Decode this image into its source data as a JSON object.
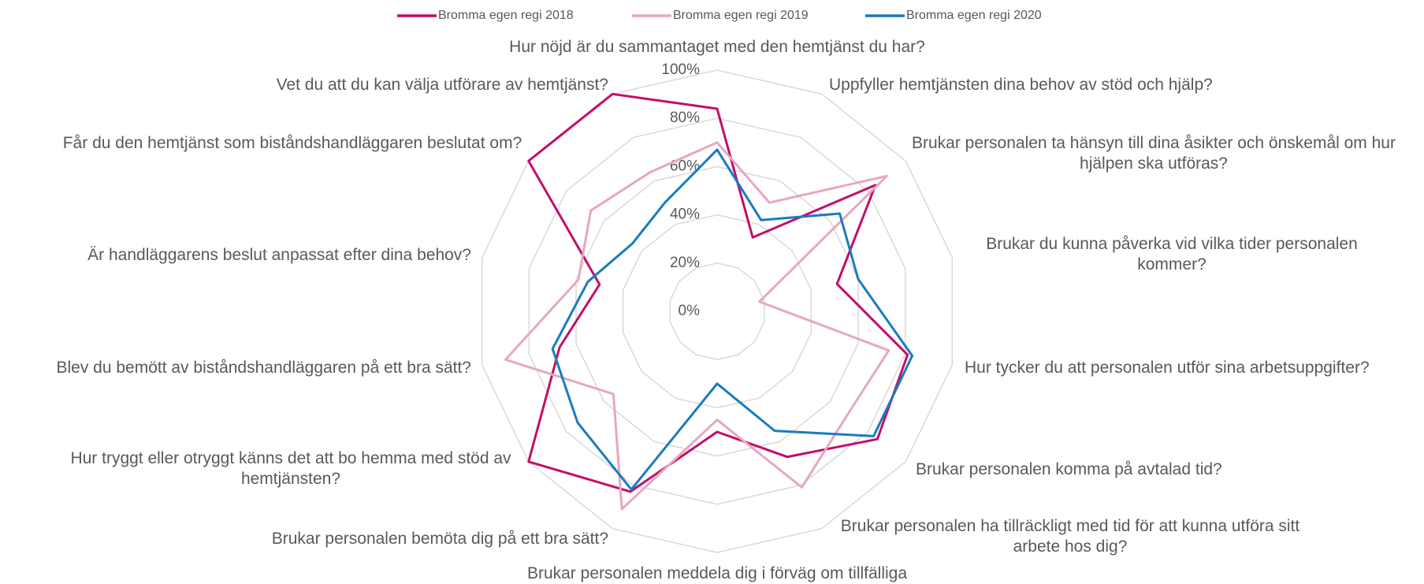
{
  "chart_data": {
    "type": "radar",
    "categories": [
      "Hur nöjd är du sammantaget med den hemtjänst du har?",
      "Uppfyller hemtjänsten dina behov av stöd och hjälp?",
      "Brukar personalen ta hänsyn till dina åsikter och önskemål om hur hjälpen ska utföras?",
      "Brukar du kunna påverka vid vilka tider personalen kommer?",
      "Hur tycker du att personalen utför sina arbetsuppgifter?",
      "Brukar personalen komma på avtalad tid?",
      "Brukar personalen ha tillräckligt med tid för att kunna utföra sitt arbete hos dig?",
      "Brukar personalen meddela dig i förväg om tillfälliga",
      "Brukar personalen bemöta dig på ett bra sätt?",
      "Hur tryggt eller otryggt känns det att bo hemma med stöd av hemtjänsten?",
      "Blev du bemött av biståndshandläggaren på ett bra sätt?",
      "Är handläggarens beslut anpassat efter dina behov?",
      "Får du den hemtjänst som biståndshandläggaren beslutat om?",
      "Vet du att du kan välja utförare av hemtjänst?"
    ],
    "series": [
      {
        "name": "Bromma egen regi 2018",
        "color": "#c20e6b",
        "values": [
          84,
          34,
          84,
          51,
          81,
          85,
          67,
          50,
          83,
          100,
          67,
          50,
          100,
          100
        ]
      },
      {
        "name": "Bromma egen regi 2019",
        "color": "#e6a8bf",
        "values": [
          70,
          50,
          90,
          18,
          73,
          69,
          81,
          45,
          91,
          55,
          90,
          59,
          67,
          64
        ]
      },
      {
        "name": "Bromma egen regi 2020",
        "color": "#1a7bbf",
        "values": [
          67,
          42,
          65,
          60,
          83,
          83,
          55,
          30,
          82,
          74,
          70,
          55,
          45,
          50
        ]
      }
    ],
    "ylim": [
      0,
      100
    ],
    "yticks": [
      {
        "value": 0,
        "label": "0%"
      },
      {
        "value": 20,
        "label": "20%"
      },
      {
        "value": 40,
        "label": "40%"
      },
      {
        "value": 60,
        "label": "60%"
      },
      {
        "value": 80,
        "label": "80%"
      },
      {
        "value": 100,
        "label": "100%"
      }
    ],
    "grid": true,
    "legend": "top"
  }
}
